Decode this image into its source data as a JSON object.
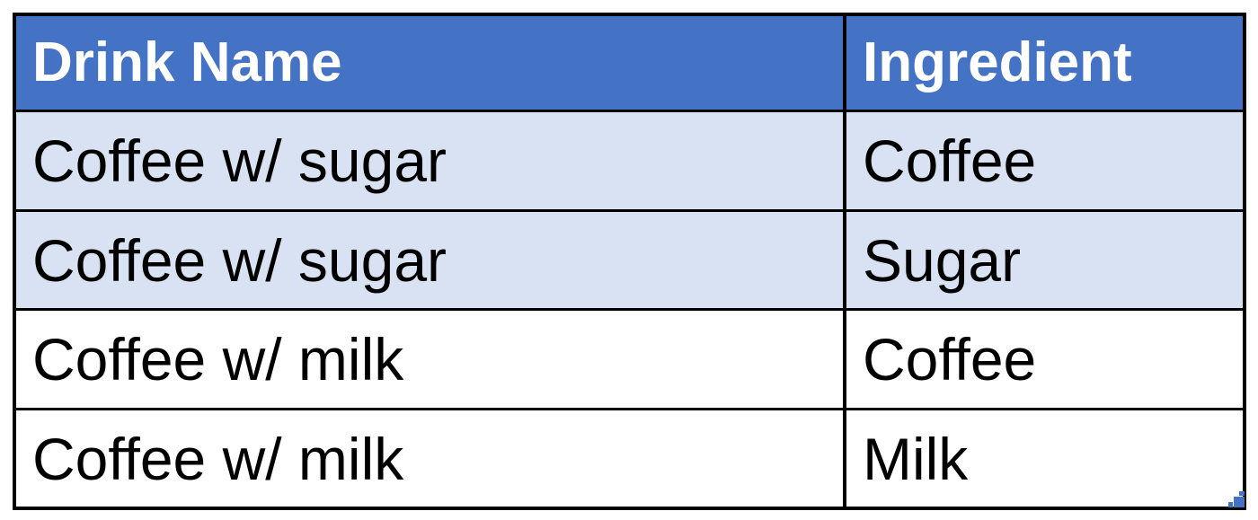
{
  "colors": {
    "header_bg": "#4472c4",
    "band_bg": "#d9e2f2",
    "plain_bg": "#ffffff",
    "border": "#000000",
    "header_text": "#ffffff",
    "body_text": "#000000",
    "resize_handle": "#4472c4"
  },
  "table": {
    "headers": [
      "Drink Name",
      "Ingredient"
    ],
    "rows": [
      [
        "Coffee w/ sugar",
        "Coffee"
      ],
      [
        "Coffee w/ sugar",
        "Sugar"
      ],
      [
        "Coffee w/ milk",
        "Coffee"
      ],
      [
        "Coffee w/ milk",
        "Milk"
      ]
    ]
  },
  "icons": {
    "resize_handle": "resize-handle-icon"
  }
}
